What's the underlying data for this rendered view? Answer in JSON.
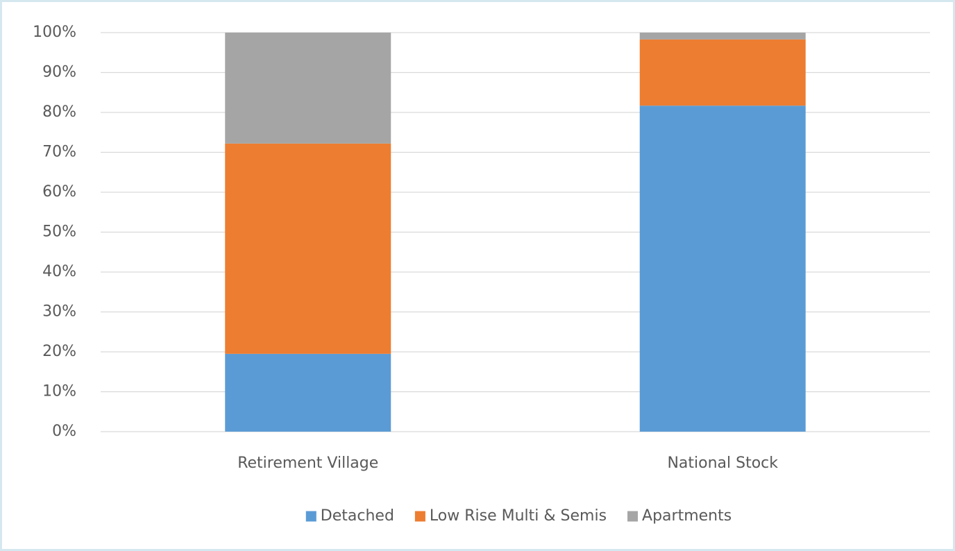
{
  "chart_data": {
    "type": "stacked_bar",
    "categories": [
      "Retirement Village",
      "National Stock"
    ],
    "series": [
      {
        "name": "Detached",
        "color": "#5b9bd5",
        "values": [
          19.5,
          81.7
        ]
      },
      {
        "name": "Low Rise Multi & Semis",
        "color": "#ed7d31",
        "values": [
          52.7,
          16.6
        ]
      },
      {
        "name": "Apartments",
        "color": "#a5a5a5",
        "values": [
          27.8,
          1.7
        ]
      }
    ],
    "ylim": [
      0,
      100
    ],
    "yticks": [
      {
        "value": 0,
        "label": "0%"
      },
      {
        "value": 10,
        "label": "10%"
      },
      {
        "value": 20,
        "label": "20%"
      },
      {
        "value": 30,
        "label": "30%"
      },
      {
        "value": 40,
        "label": "40%"
      },
      {
        "value": 50,
        "label": "50%"
      },
      {
        "value": 60,
        "label": "60%"
      },
      {
        "value": 70,
        "label": "70%"
      },
      {
        "value": 80,
        "label": "80%"
      },
      {
        "value": 90,
        "label": "90%"
      },
      {
        "value": 100,
        "label": "100%"
      }
    ],
    "grid": true,
    "legend": "bottom"
  }
}
